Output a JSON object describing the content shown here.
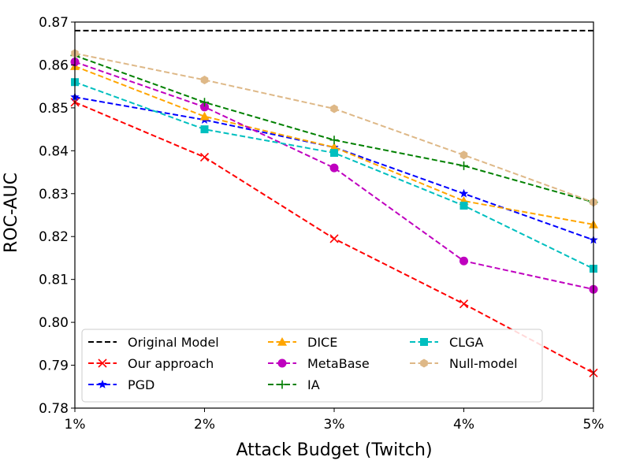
{
  "chart_data": {
    "type": "line",
    "title": "",
    "xlabel": "Attack Budget (Twitch)",
    "ylabel": "ROC-AUC",
    "categories": [
      "1%",
      "2%",
      "3%",
      "4%",
      "5%"
    ],
    "ylim": [
      0.78,
      0.87
    ],
    "yticks": [
      "0.78",
      "0.79",
      "0.80",
      "0.81",
      "0.82",
      "0.83",
      "0.84",
      "0.85",
      "0.86",
      "0.87"
    ],
    "grid": false,
    "legend_position": "lower-left",
    "series": [
      {
        "name": "Original Model",
        "values": [
          0.868,
          0.868,
          0.868,
          0.868,
          0.868
        ],
        "color": "#000000",
        "marker": "none"
      },
      {
        "name": "Our approach",
        "values": [
          0.8513,
          0.8385,
          0.8195,
          0.8043,
          0.7882
        ],
        "color": "#ff0000",
        "marker": "x"
      },
      {
        "name": "PGD",
        "values": [
          0.8525,
          0.8472,
          0.8408,
          0.83,
          0.8192
        ],
        "color": "#0000ff",
        "marker": "star"
      },
      {
        "name": "DICE",
        "values": [
          0.8597,
          0.848,
          0.8408,
          0.8283,
          0.8228
        ],
        "color": "#ffa500",
        "marker": "triangle"
      },
      {
        "name": "MetaBase",
        "values": [
          0.8607,
          0.8502,
          0.836,
          0.8143,
          0.8077
        ],
        "color": "#bf00bf",
        "marker": "circle"
      },
      {
        "name": "IA",
        "values": [
          0.8622,
          0.8513,
          0.8425,
          0.8365,
          0.828
        ],
        "color": "#008000",
        "marker": "plus"
      },
      {
        "name": "CLGA",
        "values": [
          0.856,
          0.845,
          0.8395,
          0.8272,
          0.8125
        ],
        "color": "#00bfbf",
        "marker": "square"
      },
      {
        "name": "Null-model",
        "values": [
          0.8627,
          0.8565,
          0.8498,
          0.839,
          0.828
        ],
        "color": "#deb887",
        "marker": "hexagon"
      }
    ],
    "legend_order": [
      [
        "Original Model",
        "Our approach",
        "PGD"
      ],
      [
        "DICE",
        "MetaBase",
        "IA"
      ],
      [
        "CLGA",
        "Null-model"
      ]
    ]
  }
}
